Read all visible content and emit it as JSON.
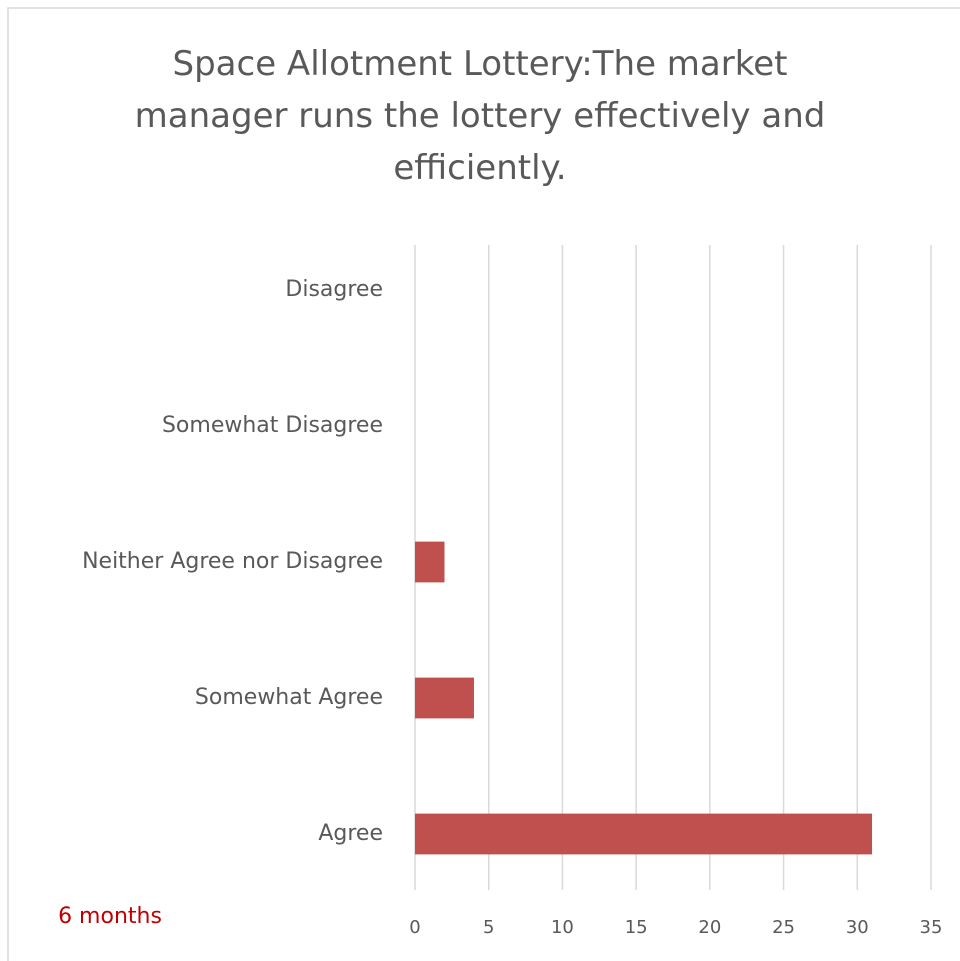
{
  "chart_data": {
    "type": "bar",
    "orientation": "horizontal",
    "title": "Space Allotment Lottery:The market manager runs the lottery effectively and efficiently.",
    "categories": [
      "Disagree",
      "Somewhat Disagree",
      "Neither Agree nor Disagree",
      "Somewhat Agree",
      "Agree"
    ],
    "values": [
      0,
      0,
      2,
      4,
      31
    ],
    "color": "#c0504d",
    "xlim": [
      0,
      35
    ],
    "xticks": [
      0,
      5,
      10,
      15,
      20,
      25,
      30,
      35
    ],
    "grid": true,
    "annotation": "6 months",
    "annotation_color": "#c00000"
  }
}
